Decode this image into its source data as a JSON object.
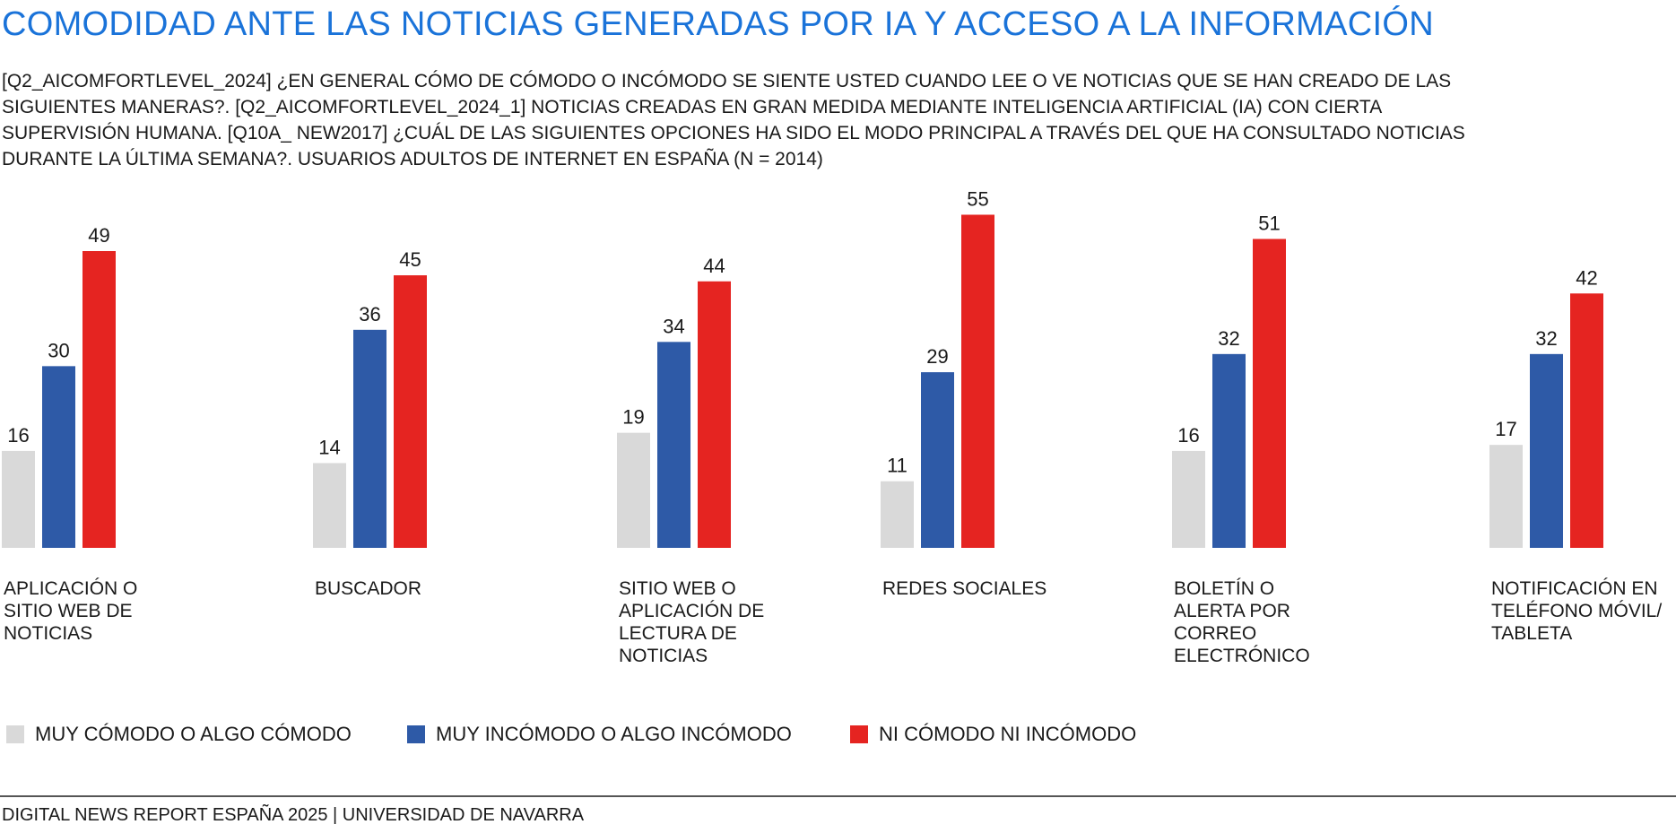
{
  "title": "COMODIDAD ANTE LAS NOTICIAS GENERADAS POR IA Y ACCESO A LA INFORMACIÓN",
  "subtitle": "[Q2_AICOMFORTLEVEL_2024] ¿EN GENERAL CÓMO DE CÓMODO O INCÓMODO SE SIENTE USTED CUANDO LEE O VE NOTICIAS QUE SE HAN CREADO DE LAS SIGUIENTES MANERAS?. [Q2_AICOMFORTLEVEL_2024_1] NOTICIAS CREADAS EN GRAN MEDIDA MEDIANTE INTELIGENCIA ARTIFICIAL (IA) CON CIERTA SUPERVISIÓN HUMANA. [Q10A_ NEW2017] ¿CUÁL DE LAS SIGUIENTES OPCIONES HA SIDO EL MODO PRINCIPAL A TRAVÉS DEL QUE HA CONSULTADO NOTICIAS DURANTE LA ÚLTIMA SEMANA?. USUARIOS ADULTOS DE INTERNET EN ESPAÑA (N = 2014)",
  "footer": "DIGITAL NEWS REPORT ESPAÑA 2025 | UNIVERSIDAD DE NAVARRA",
  "chart_data": {
    "type": "bar",
    "categories": [
      "APLICACIÓN O SITIO WEB DE NOTICIAS",
      "BUSCADOR",
      "SITIO WEB O APLICACIÓN DE LECTURA DE NOTICIAS",
      "REDES SOCIALES",
      "BOLETÍN O ALERTA POR CORREO ELECTRÓNICO",
      "NOTIFICACIÓN EN TELÉFONO MÓVIL/ TABLETA"
    ],
    "series": [
      {
        "name": "MUY CÓMODO O ALGO CÓMODO",
        "color": "#d9d9d9",
        "values": [
          16,
          14,
          19,
          11,
          16,
          17
        ]
      },
      {
        "name": "MUY INCÓMODO O ALGO INCÓMODO",
        "color": "#2e5aa7",
        "values": [
          30,
          36,
          34,
          29,
          32,
          32
        ]
      },
      {
        "name": "NI CÓMODO NI INCÓMODO",
        "color": "#e52421",
        "values": [
          49,
          45,
          44,
          55,
          51,
          42
        ]
      }
    ],
    "ylim": [
      0,
      55
    ],
    "grid": false,
    "legend_position": "bottom-left"
  }
}
